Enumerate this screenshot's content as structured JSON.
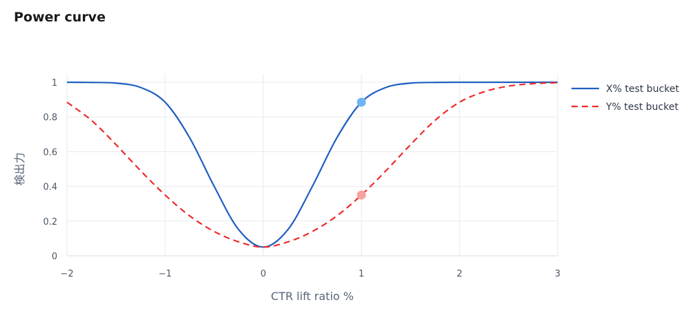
{
  "title": "Power curve",
  "chart_data": {
    "type": "line",
    "xlabel": "CTR lift ratio %",
    "ylabel": "検出力",
    "xlim": [
      -2,
      3
    ],
    "ylim": [
      0,
      1
    ],
    "x_ticks": [
      "−2",
      "−1",
      "0",
      "1",
      "2",
      "3"
    ],
    "x_tick_values": [
      -2,
      -1,
      0,
      1,
      2,
      3
    ],
    "y_ticks": [
      "0",
      "0.2",
      "0.4",
      "0.6",
      "0.8",
      "1"
    ],
    "y_tick_values": [
      0,
      0.2,
      0.4,
      0.6,
      0.8,
      1
    ],
    "grid": true,
    "legend_position": "right",
    "series": [
      {
        "name": "X% test bucket",
        "color": "#1f5fbf",
        "dash": "solid",
        "x": [
          -2,
          -1.75,
          -1.5,
          -1.25,
          -1,
          -0.75,
          -0.5,
          -0.25,
          0,
          0.25,
          0.5,
          0.75,
          1,
          1.25,
          1.5,
          1.75,
          2,
          2.5,
          3
        ],
        "y": [
          1.0,
          0.999,
          0.995,
          0.97,
          0.885,
          0.68,
          0.4,
          0.15,
          0.05,
          0.15,
          0.4,
          0.68,
          0.885,
          0.97,
          0.995,
          0.999,
          1.0,
          1.0,
          1.0
        ],
        "marker": {
          "x": 1,
          "y": 0.885,
          "color": "#6fb5f5"
        }
      },
      {
        "name": "Y% test bucket",
        "color": "#f02a2a",
        "dash": "dashed",
        "x": [
          -2,
          -1.75,
          -1.5,
          -1.25,
          -1,
          -0.75,
          -0.5,
          -0.25,
          0,
          0.25,
          0.5,
          0.75,
          1,
          1.25,
          1.5,
          1.75,
          2,
          2.25,
          2.5,
          2.75,
          3
        ],
        "y": [
          0.885,
          0.78,
          0.64,
          0.49,
          0.35,
          0.23,
          0.14,
          0.08,
          0.05,
          0.08,
          0.14,
          0.23,
          0.35,
          0.49,
          0.64,
          0.78,
          0.885,
          0.945,
          0.978,
          0.992,
          0.998
        ],
        "marker": {
          "x": 1,
          "y": 0.35,
          "color": "#f7a1a1"
        }
      }
    ]
  }
}
